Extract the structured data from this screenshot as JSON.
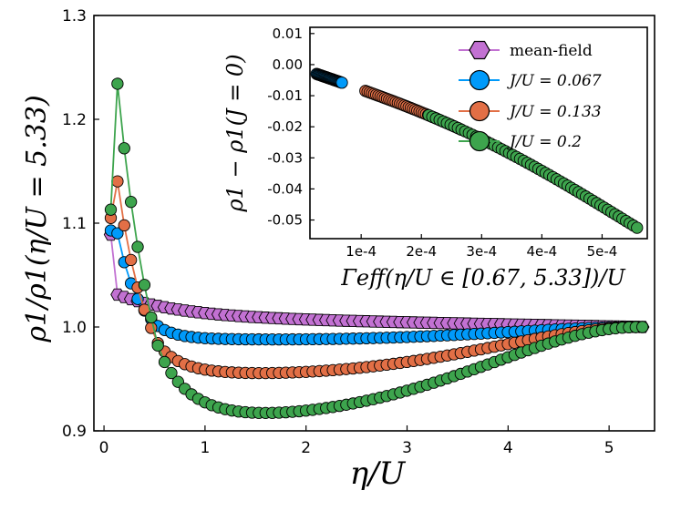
{
  "chart_data": [
    {
      "id": "main",
      "type": "scatter",
      "xlabel": "η/U",
      "ylabel": "ρ1/ρ1(η/U = 5.33)",
      "xlim": [
        -0.1,
        5.45
      ],
      "ylim": [
        0.9,
        1.3
      ],
      "xticks": [
        0,
        1,
        2,
        3,
        4,
        5
      ],
      "xtick_labels": [
        "0",
        "1",
        "2",
        "3",
        "4",
        "5"
      ],
      "yticks": [
        0.9,
        1.0,
        1.1,
        1.2,
        1.3
      ],
      "ytick_labels": [
        "0.9",
        "1.0",
        "1.1",
        "1.2",
        "1.3"
      ],
      "grid": false,
      "x_range": {
        "start": 0.067,
        "end": 5.33,
        "count": 80
      },
      "series": [
        {
          "name": "mean-field",
          "marker": "hexagon",
          "color": "#c271d2",
          "model": {
            "type": "mf",
            "a": 0.024,
            "k": 1.6
          }
        },
        {
          "name": "J/U = 0.067",
          "marker": "circle",
          "color": "#009afa",
          "model": {
            "type": "dip",
            "a": 0.13,
            "k": 5,
            "d": 0.012,
            "xm": 1.6
          }
        },
        {
          "name": "J/U = 0.133",
          "marker": "circle",
          "color": "#e26f46",
          "model": {
            "type": "dip",
            "a": 0.2,
            "k": 4.2,
            "d": 0.045,
            "xm": 1.3
          }
        },
        {
          "name": "J/U = 0.2",
          "marker": "circle",
          "color": "#3da44d",
          "model": {
            "type": "dip",
            "a": 0.32,
            "k": 3.4,
            "d": 0.086,
            "xm": 1.1
          }
        }
      ],
      "annotation": {
        "x_near": 0.067,
        "series": [
          "mean-field",
          "J/U = 0.067",
          "J/U = 0.133",
          "J/U = 0.2"
        ],
        "start_values": [
          1.089,
          1.093,
          1.105,
          1.113
        ]
      }
    },
    {
      "id": "inset",
      "type": "scatter",
      "xlabel": "Γeff(η/U ∈ [0.67, 5.33])/U",
      "ylabel": "ρ1 − ρ1(J = 0)",
      "xlim": [
        1.5e-05,
        0.000575
      ],
      "ylim": [
        -0.056,
        0.012
      ],
      "xticks": [
        0.0001,
        0.0002,
        0.0003,
        0.0004,
        0.0005
      ],
      "xtick_labels": [
        "1e-4",
        "2e-4",
        "3e-4",
        "4e-4",
        "5e-4"
      ],
      "yticks": [
        0.01,
        0.0,
        -0.01,
        -0.02,
        -0.03,
        -0.04,
        -0.05
      ],
      "ytick_labels": [
        "0.01",
        "0.00",
        "-0.01",
        "-0.02",
        "-0.03",
        "-0.04",
        "-0.05"
      ],
      "series": [
        {
          "name": "J/U = 0.067",
          "color": "#009afa",
          "x_start": 2.6e-05,
          "x_end": 6.8e-05,
          "count": 28
        },
        {
          "name": "J/U = 0.133",
          "color": "#e26f46",
          "x_start": 0.000107,
          "x_end": 0.000265,
          "count": 45
        },
        {
          "name": "J/U = 0.2",
          "color": "#3da44d",
          "x_start": 0.000212,
          "x_end": 0.000558,
          "count": 58
        }
      ],
      "curve": {
        "x0": 2.6e-05,
        "y0": -0.003,
        "x1": 0.000558,
        "y1": -0.0525,
        "bend": 0.0045
      }
    }
  ],
  "legend": {
    "position": "top-right of inset",
    "entries": [
      {
        "label": "mean-field",
        "marker": "hexagon",
        "color": "#c271d2"
      },
      {
        "label": "J/U = 0.067",
        "marker": "circle",
        "color": "#009afa"
      },
      {
        "label": "J/U = 0.133",
        "marker": "circle",
        "color": "#e26f46"
      },
      {
        "label": "J/U = 0.2",
        "marker": "circle",
        "color": "#3da44d"
      }
    ]
  },
  "labels": {
    "main_xlabel": "η/U",
    "main_ylabel": "ρ1/ρ1(η/U = 5.33)",
    "inset_xlabel": "Γeff(η/U ∈ [0.67, 5.33])/U",
    "inset_ylabel": "ρ1 − ρ1(J = 0)"
  }
}
